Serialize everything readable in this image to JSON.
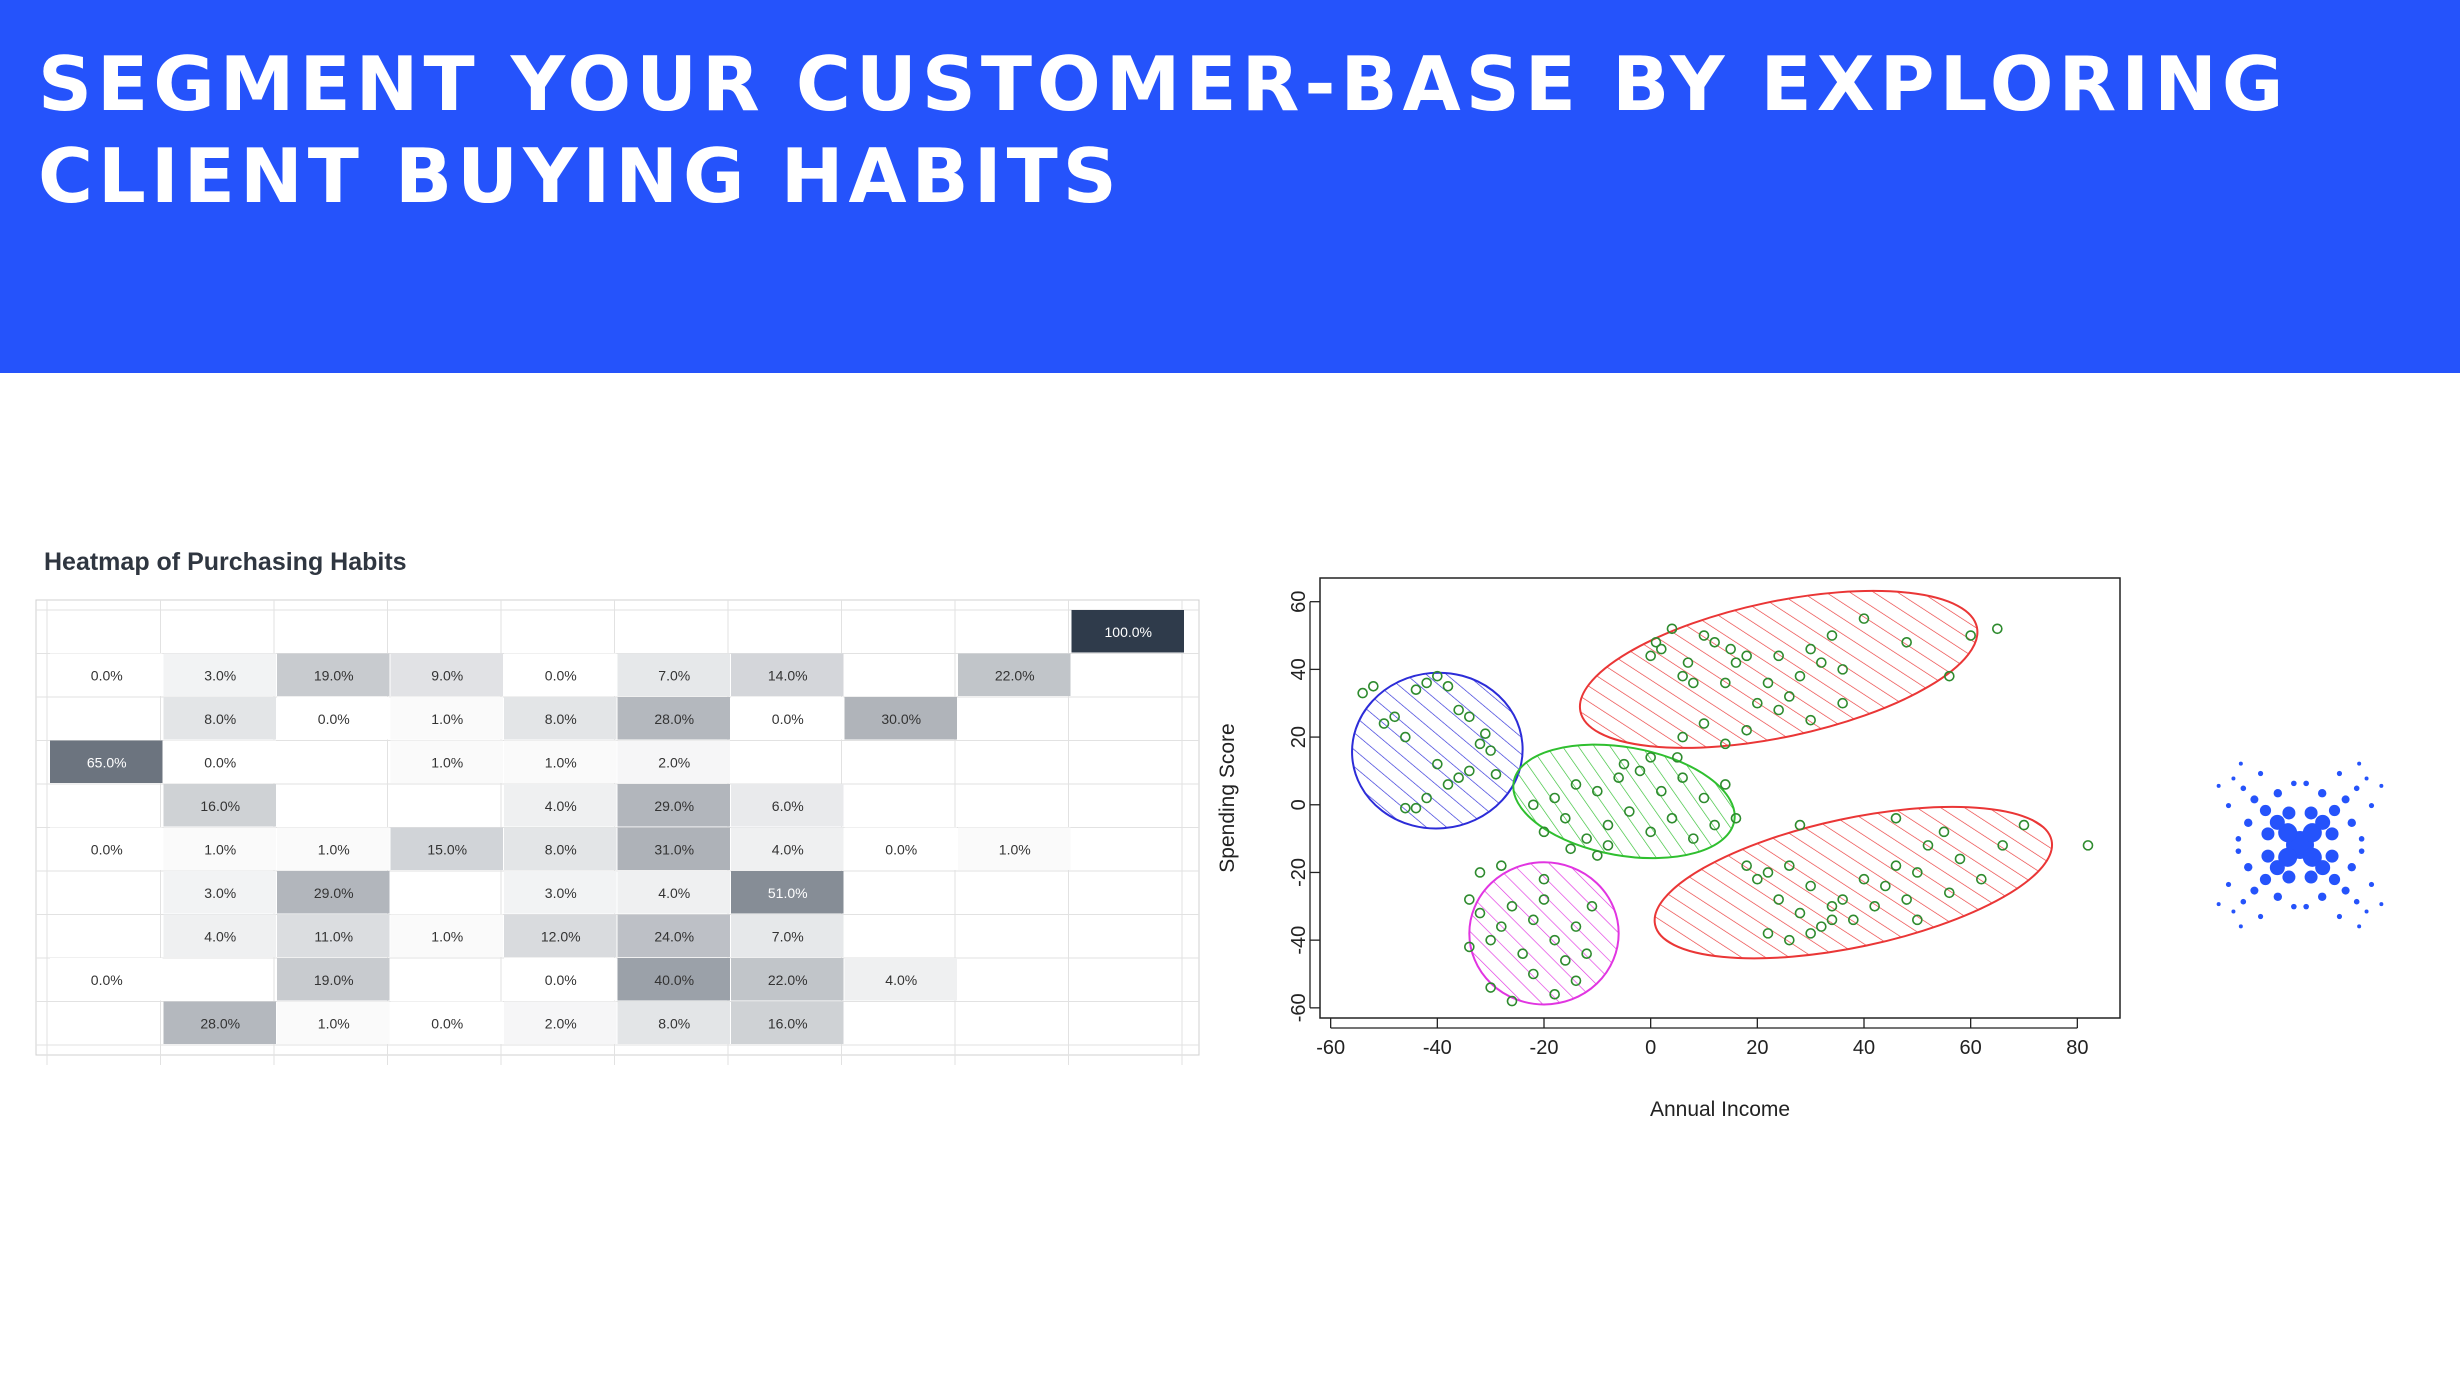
{
  "page": {
    "title": "SEGMENT YOUR CUSTOMER-BASE BY EXPLORING CLIENT BUYING HABITS",
    "colors": {
      "banner": "#2553fb",
      "banner_text": "#ffffff",
      "logo": "#2553fb"
    },
    "logo_icon": "dotted-x-logo-icon"
  },
  "chart_data": [
    {
      "type": "heatmap",
      "title": "Heatmap of Purchasing Habits",
      "grid": true,
      "cmap": [
        "#ffffff",
        "#2f3b4b"
      ],
      "cells": [
        {
          "row": 0,
          "col": 9,
          "value": 100.0,
          "label": "100.0%"
        },
        {
          "row": 1,
          "col": 0,
          "value": 0.0,
          "label": "0.0%"
        },
        {
          "row": 1,
          "col": 1,
          "value": 3.0,
          "label": "3.0%"
        },
        {
          "row": 1,
          "col": 2,
          "value": 19.0,
          "label": "19.0%"
        },
        {
          "row": 1,
          "col": 3,
          "value": 9.0,
          "label": "9.0%"
        },
        {
          "row": 1,
          "col": 4,
          "value": 0.0,
          "label": "0.0%"
        },
        {
          "row": 1,
          "col": 5,
          "value": 7.0,
          "label": "7.0%"
        },
        {
          "row": 1,
          "col": 6,
          "value": 14.0,
          "label": "14.0%"
        },
        {
          "row": 1,
          "col": 8,
          "value": 22.0,
          "label": "22.0%"
        },
        {
          "row": 2,
          "col": 1,
          "value": 8.0,
          "label": "8.0%"
        },
        {
          "row": 2,
          "col": 2,
          "value": 0.0,
          "label": "0.0%"
        },
        {
          "row": 2,
          "col": 3,
          "value": 1.0,
          "label": "1.0%"
        },
        {
          "row": 2,
          "col": 4,
          "value": 8.0,
          "label": "8.0%"
        },
        {
          "row": 2,
          "col": 5,
          "value": 28.0,
          "label": "28.0%"
        },
        {
          "row": 2,
          "col": 6,
          "value": 0.0,
          "label": "0.0%"
        },
        {
          "row": 2,
          "col": 7,
          "value": 30.0,
          "label": "30.0%"
        },
        {
          "row": 3,
          "col": 0,
          "value": 65.0,
          "label": "65.0%"
        },
        {
          "row": 3,
          "col": 1,
          "value": 0.0,
          "label": "0.0%"
        },
        {
          "row": 3,
          "col": 3,
          "value": 1.0,
          "label": "1.0%"
        },
        {
          "row": 3,
          "col": 4,
          "value": 1.0,
          "label": "1.0%"
        },
        {
          "row": 3,
          "col": 5,
          "value": 2.0,
          "label": "2.0%"
        },
        {
          "row": 4,
          "col": 1,
          "value": 16.0,
          "label": "16.0%"
        },
        {
          "row": 4,
          "col": 4,
          "value": 4.0,
          "label": "4.0%"
        },
        {
          "row": 4,
          "col": 5,
          "value": 29.0,
          "label": "29.0%"
        },
        {
          "row": 4,
          "col": 6,
          "value": 6.0,
          "label": "6.0%"
        },
        {
          "row": 5,
          "col": 0,
          "value": 0.0,
          "label": "0.0%"
        },
        {
          "row": 5,
          "col": 1,
          "value": 1.0,
          "label": "1.0%"
        },
        {
          "row": 5,
          "col": 2,
          "value": 1.0,
          "label": "1.0%"
        },
        {
          "row": 5,
          "col": 3,
          "value": 15.0,
          "label": "15.0%"
        },
        {
          "row": 5,
          "col": 4,
          "value": 8.0,
          "label": "8.0%"
        },
        {
          "row": 5,
          "col": 5,
          "value": 31.0,
          "label": "31.0%"
        },
        {
          "row": 5,
          "col": 6,
          "value": 4.0,
          "label": "4.0%"
        },
        {
          "row": 5,
          "col": 7,
          "value": 0.0,
          "label": "0.0%"
        },
        {
          "row": 5,
          "col": 8,
          "value": 1.0,
          "label": "1.0%"
        },
        {
          "row": 6,
          "col": 1,
          "value": 3.0,
          "label": "3.0%"
        },
        {
          "row": 6,
          "col": 2,
          "value": 29.0,
          "label": "29.0%"
        },
        {
          "row": 6,
          "col": 4,
          "value": 3.0,
          "label": "3.0%"
        },
        {
          "row": 6,
          "col": 5,
          "value": 4.0,
          "label": "4.0%"
        },
        {
          "row": 6,
          "col": 6,
          "value": 51.0,
          "label": "51.0%"
        },
        {
          "row": 7,
          "col": 1,
          "value": 4.0,
          "label": "4.0%"
        },
        {
          "row": 7,
          "col": 2,
          "value": 11.0,
          "label": "11.0%"
        },
        {
          "row": 7,
          "col": 3,
          "value": 1.0,
          "label": "1.0%"
        },
        {
          "row": 7,
          "col": 4,
          "value": 12.0,
          "label": "12.0%"
        },
        {
          "row": 7,
          "col": 5,
          "value": 24.0,
          "label": "24.0%"
        },
        {
          "row": 7,
          "col": 6,
          "value": 7.0,
          "label": "7.0%"
        },
        {
          "row": 8,
          "col": 0,
          "value": 0.0,
          "label": "0.0%"
        },
        {
          "row": 8,
          "col": 2,
          "value": 19.0,
          "label": "19.0%"
        },
        {
          "row": 8,
          "col": 4,
          "value": 0.0,
          "label": "0.0%"
        },
        {
          "row": 8,
          "col": 5,
          "value": 40.0,
          "label": "40.0%"
        },
        {
          "row": 8,
          "col": 6,
          "value": 22.0,
          "label": "22.0%"
        },
        {
          "row": 8,
          "col": 7,
          "value": 4.0,
          "label": "4.0%"
        },
        {
          "row": 9,
          "col": 1,
          "value": 28.0,
          "label": "28.0%"
        },
        {
          "row": 9,
          "col": 2,
          "value": 1.0,
          "label": "1.0%"
        },
        {
          "row": 9,
          "col": 3,
          "value": 0.0,
          "label": "0.0%"
        },
        {
          "row": 9,
          "col": 4,
          "value": 2.0,
          "label": "2.0%"
        },
        {
          "row": 9,
          "col": 5,
          "value": 8.0,
          "label": "8.0%"
        },
        {
          "row": 9,
          "col": 6,
          "value": 16.0,
          "label": "16.0%"
        }
      ]
    },
    {
      "type": "scatter",
      "xlabel": "Annual Income",
      "ylabel": "Spending Score",
      "xlim": [
        -62,
        88
      ],
      "ylim": [
        -63,
        67
      ],
      "xticks": [
        -60,
        -40,
        -20,
        0,
        20,
        40,
        60,
        80
      ],
      "yticks": [
        -60,
        -40,
        -20,
        0,
        20,
        40,
        60
      ],
      "grid": false,
      "point_color": "#2e8b2e",
      "clusters": [
        {
          "color": "#2c2cd8",
          "center": [
            -40,
            16
          ],
          "rx": 16,
          "ry": 23,
          "angle": -5,
          "points": [
            [
              -54,
              33
            ],
            [
              -52,
              35
            ],
            [
              -50,
              24
            ],
            [
              -48,
              26
            ],
            [
              -46,
              20
            ],
            [
              -44,
              34
            ],
            [
              -42,
              36
            ],
            [
              -40,
              38
            ],
            [
              -38,
              35
            ],
            [
              -36,
              28
            ],
            [
              -34,
              26
            ],
            [
              -40,
              12
            ],
            [
              -38,
              6
            ],
            [
              -36,
              8
            ],
            [
              -34,
              10
            ],
            [
              -32,
              18
            ],
            [
              -30,
              16
            ],
            [
              -29,
              9
            ],
            [
              -31,
              21
            ],
            [
              -46,
              -1
            ],
            [
              -44,
              -1
            ],
            [
              -42,
              2
            ]
          ]
        },
        {
          "color": "#ea3636",
          "center": [
            24,
            40
          ],
          "rx": 38,
          "ry": 20,
          "angle": -12,
          "points": [
            [
              0,
              44
            ],
            [
              1,
              48
            ],
            [
              2,
              46
            ],
            [
              4,
              52
            ],
            [
              6,
              38
            ],
            [
              7,
              42
            ],
            [
              8,
              36
            ],
            [
              10,
              50
            ],
            [
              12,
              48
            ],
            [
              14,
              36
            ],
            [
              15,
              46
            ],
            [
              16,
              42
            ],
            [
              18,
              44
            ],
            [
              20,
              30
            ],
            [
              22,
              36
            ],
            [
              24,
              44
            ],
            [
              26,
              32
            ],
            [
              28,
              38
            ],
            [
              30,
              46
            ],
            [
              32,
              42
            ],
            [
              34,
              50
            ],
            [
              36,
              40
            ],
            [
              40,
              55
            ],
            [
              48,
              48
            ],
            [
              56,
              38
            ],
            [
              60,
              50
            ],
            [
              65,
              52
            ],
            [
              6,
              20
            ],
            [
              10,
              24
            ],
            [
              14,
              18
            ],
            [
              18,
              22
            ],
            [
              24,
              28
            ],
            [
              30,
              25
            ],
            [
              36,
              30
            ]
          ]
        },
        {
          "color": "#2fbf2f",
          "center": [
            -5,
            1
          ],
          "rx": 21,
          "ry": 16,
          "angle": 10,
          "points": [
            [
              -20,
              -8
            ],
            [
              -18,
              2
            ],
            [
              -16,
              -4
            ],
            [
              -14,
              6
            ],
            [
              -12,
              -10
            ],
            [
              -10,
              4
            ],
            [
              -8,
              -6
            ],
            [
              -6,
              8
            ],
            [
              -4,
              -2
            ],
            [
              -2,
              10
            ],
            [
              0,
              -8
            ],
            [
              2,
              4
            ],
            [
              4,
              -4
            ],
            [
              6,
              8
            ],
            [
              8,
              -10
            ],
            [
              10,
              2
            ],
            [
              12,
              -6
            ],
            [
              14,
              6
            ],
            [
              -15,
              -13
            ],
            [
              -10,
              -15
            ],
            [
              -5,
              12
            ],
            [
              0,
              14
            ],
            [
              5,
              14
            ],
            [
              -22,
              0
            ],
            [
              16,
              -4
            ],
            [
              -8,
              -12
            ]
          ]
        },
        {
          "color": "#e135e1",
          "center": [
            -20,
            -38
          ],
          "rx": 14,
          "ry": 21,
          "angle": 0,
          "points": [
            [
              -34,
              -28
            ],
            [
              -32,
              -32
            ],
            [
              -30,
              -40
            ],
            [
              -28,
              -36
            ],
            [
              -26,
              -30
            ],
            [
              -24,
              -44
            ],
            [
              -22,
              -34
            ],
            [
              -20,
              -28
            ],
            [
              -18,
              -40
            ],
            [
              -16,
              -46
            ],
            [
              -14,
              -36
            ],
            [
              -12,
              -44
            ],
            [
              -30,
              -54
            ],
            [
              -26,
              -58
            ],
            [
              -22,
              -50
            ],
            [
              -18,
              -56
            ],
            [
              -14,
              -52
            ],
            [
              -32,
              -20
            ],
            [
              -28,
              -18
            ],
            [
              -20,
              -22
            ],
            [
              -11,
              -30
            ],
            [
              -34,
              -42
            ]
          ]
        },
        {
          "color": "#ea3636",
          "center": [
            38,
            -23
          ],
          "rx": 38,
          "ry": 19,
          "angle": -12,
          "points": [
            [
              18,
              -18
            ],
            [
              20,
              -22
            ],
            [
              22,
              -20
            ],
            [
              24,
              -28
            ],
            [
              26,
              -18
            ],
            [
              28,
              -32
            ],
            [
              30,
              -24
            ],
            [
              32,
              -36
            ],
            [
              34,
              -30
            ],
            [
              36,
              -28
            ],
            [
              38,
              -34
            ],
            [
              40,
              -22
            ],
            [
              42,
              -30
            ],
            [
              44,
              -24
            ],
            [
              46,
              -18
            ],
            [
              48,
              -28
            ],
            [
              50,
              -20
            ],
            [
              52,
              -12
            ],
            [
              55,
              -8
            ],
            [
              58,
              -16
            ],
            [
              62,
              -22
            ],
            [
              66,
              -12
            ],
            [
              70,
              -6
            ],
            [
              82,
              -12
            ],
            [
              28,
              -6
            ],
            [
              46,
              -4
            ],
            [
              22,
              -38
            ],
            [
              26,
              -40
            ],
            [
              30,
              -38
            ],
            [
              34,
              -34
            ],
            [
              50,
              -34
            ],
            [
              56,
              -26
            ]
          ]
        }
      ]
    }
  ]
}
